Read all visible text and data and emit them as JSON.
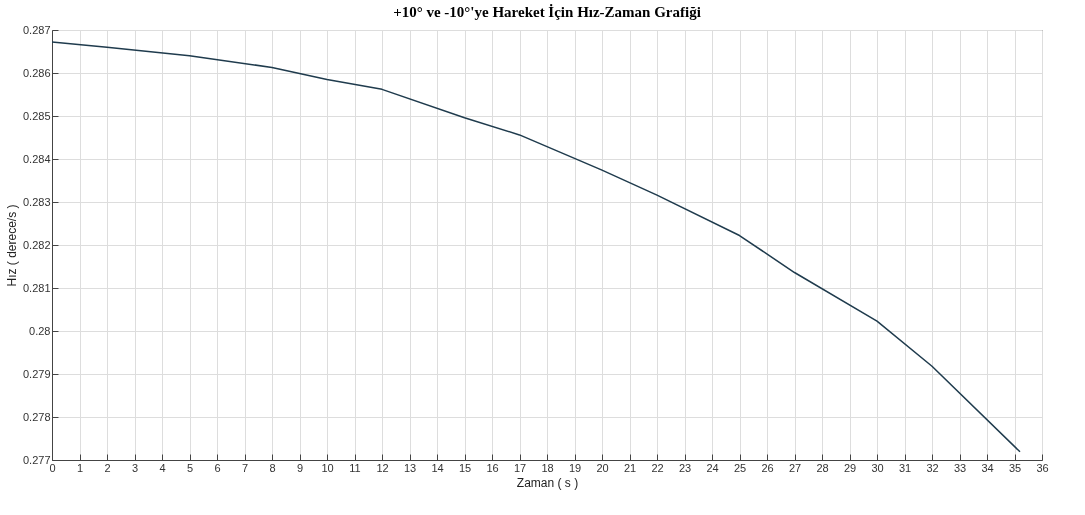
{
  "chart_data": {
    "type": "line",
    "title": "+10° ve -10°'ye Hareket İçin Hız-Zaman Grafiği",
    "xlabel": "Zaman ( s )",
    "ylabel": "Hız ( derece/s )",
    "x": [
      0,
      2,
      5,
      8,
      10,
      12,
      15,
      17,
      20,
      22,
      25,
      27,
      30,
      32,
      35.2
    ],
    "series": [
      {
        "color": "#1f3b4d",
        "values": [
          0.28672,
          0.2866,
          0.2864,
          0.28613,
          0.28585,
          0.28562,
          0.28496,
          0.28456,
          0.28374,
          0.28316,
          0.28222,
          0.28136,
          0.28023,
          0.27918,
          0.27719
        ]
      }
    ],
    "xlim": [
      0,
      36
    ],
    "xticks": [
      0,
      1,
      2,
      3,
      4,
      5,
      6,
      7,
      8,
      9,
      10,
      11,
      12,
      13,
      14,
      15,
      16,
      17,
      18,
      19,
      20,
      21,
      22,
      23,
      24,
      25,
      26,
      27,
      28,
      29,
      30,
      31,
      32,
      33,
      34,
      35,
      36
    ],
    "ylim": [
      0.277,
      0.287
    ],
    "yticks": [
      0.277,
      0.278,
      0.279,
      0.28,
      0.281,
      0.282,
      0.283,
      0.284,
      0.285,
      0.286,
      0.287
    ],
    "grid": true,
    "legend": false
  }
}
